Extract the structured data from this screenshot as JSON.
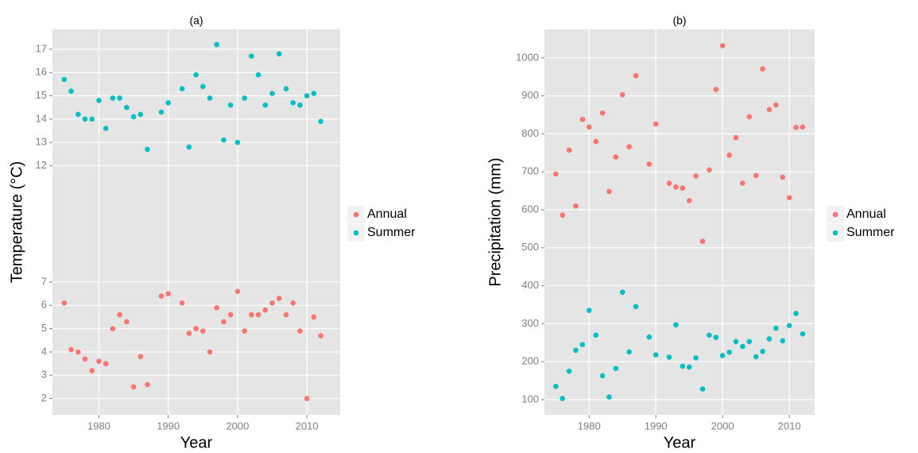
{
  "chart_data": [
    {
      "type": "scatter",
      "title": "(a)",
      "x_label": "Year",
      "y_label": "Temperature (°C)",
      "x": [
        1975,
        1976,
        1977,
        1978,
        1979,
        1980,
        1981,
        1982,
        1983,
        1984,
        1985,
        1986,
        1987,
        1989,
        1990,
        1992,
        1993,
        1994,
        1995,
        1996,
        1997,
        1998,
        1999,
        2000,
        2001,
        2002,
        2003,
        2004,
        2005,
        2006,
        2007,
        2008,
        2009,
        2010,
        2011,
        2012
      ],
      "series": [
        {
          "name": "Annual",
          "color": "#F8766D",
          "values": [
            6.1,
            4.1,
            4.0,
            3.7,
            3.2,
            3.6,
            3.5,
            5.0,
            5.6,
            5.3,
            2.5,
            3.8,
            2.6,
            6.4,
            6.5,
            6.1,
            4.8,
            5.0,
            4.9,
            4.0,
            5.9,
            5.3,
            5.6,
            6.6,
            4.9,
            5.6,
            5.6,
            5.8,
            6.1,
            6.3,
            5.6,
            6.1,
            4.9,
            2.0,
            5.5,
            4.7
          ]
        },
        {
          "name": "Summer",
          "color": "#00BFC4",
          "values": [
            15.7,
            15.2,
            14.2,
            14.0,
            14.0,
            14.8,
            13.6,
            14.9,
            14.9,
            14.5,
            14.1,
            14.2,
            12.7,
            14.3,
            14.7,
            15.3,
            12.8,
            15.9,
            15.4,
            14.9,
            17.2,
            13.1,
            14.6,
            13.0,
            14.9,
            16.7,
            15.9,
            14.6,
            15.1,
            16.8,
            15.3,
            14.7,
            14.6,
            15.0,
            15.1,
            13.9
          ]
        }
      ],
      "xlim": [
        1973.3,
        2014.8
      ],
      "xticks": [
        1980,
        1990,
        2000,
        2010
      ],
      "ylim": [
        1.3,
        17.85
      ],
      "yticks": [
        2,
        3,
        4,
        5,
        6,
        7,
        12,
        13,
        14,
        15,
        16,
        17
      ],
      "grid": true,
      "legend": "right"
    },
    {
      "type": "scatter",
      "title": "(b)",
      "x_label": "Year",
      "y_label": "Precipitation (mm)",
      "x": [
        1975,
        1976,
        1977,
        1978,
        1979,
        1980,
        1981,
        1982,
        1983,
        1984,
        1985,
        1986,
        1987,
        1989,
        1990,
        1992,
        1993,
        1994,
        1995,
        1996,
        1997,
        1998,
        1999,
        2000,
        2001,
        2002,
        2003,
        2004,
        2005,
        2006,
        2007,
        2008,
        2009,
        2010,
        2011,
        2012
      ],
      "series": [
        {
          "name": "Annual",
          "color": "#F8766D",
          "values": [
            694,
            586,
            757,
            610,
            838,
            818,
            780,
            855,
            648,
            739,
            903,
            766,
            953,
            720,
            826,
            670,
            660,
            657,
            624,
            689,
            517,
            705,
            917,
            1032,
            744,
            790,
            670,
            845,
            690,
            971,
            864,
            876,
            686,
            632,
            817,
            818
          ]
        },
        {
          "name": "Summer",
          "color": "#00BFC4",
          "values": [
            135,
            103,
            175,
            230,
            245,
            335,
            270,
            163,
            107,
            182,
            383,
            226,
            345,
            265,
            218,
            212,
            297,
            188,
            186,
            210,
            128,
            270,
            264,
            216,
            225,
            253,
            240,
            253,
            213,
            227,
            260,
            288,
            255,
            295,
            327,
            273
          ]
        }
      ],
      "xlim": [
        1973.3,
        2013.8
      ],
      "xticks": [
        1980,
        1990,
        2000,
        2010
      ],
      "ylim": [
        60,
        1075
      ],
      "yticks": [
        100,
        200,
        300,
        400,
        500,
        600,
        700,
        800,
        900,
        1000
      ],
      "grid": true,
      "legend": "right"
    }
  ]
}
